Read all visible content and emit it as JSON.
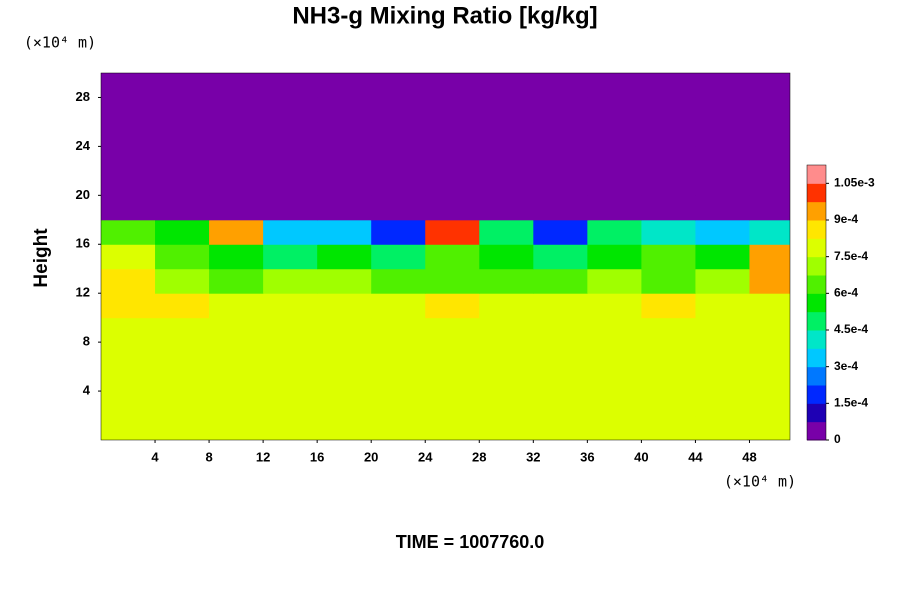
{
  "chart_data": {
    "type": "contour",
    "title": "NH3-g Mixing Ratio [kg/kg]",
    "y_label": "Height",
    "y_unit": "(×10⁴ m)",
    "x_unit": "(×10⁴ m)",
    "footer": "TIME = 1007760.0",
    "xlim": [
      0,
      51
    ],
    "xticks": [
      4,
      8,
      12,
      16,
      20,
      24,
      28,
      32,
      36,
      40,
      44,
      48
    ],
    "ylim": [
      0,
      30
    ],
    "yticks": [
      4,
      8,
      12,
      16,
      20,
      24,
      28
    ],
    "x": [
      2,
      6,
      10,
      14,
      18,
      22,
      26,
      30,
      34,
      38,
      42,
      46,
      50
    ],
    "y": [
      1,
      3,
      5,
      7,
      9,
      11,
      13,
      15,
      17,
      19,
      21,
      23,
      25,
      27,
      29
    ],
    "z": [
      [
        0.00078,
        0.00078,
        0.00078,
        0.00078,
        0.00078,
        0.00078,
        0.00078,
        0.00078,
        0.00078,
        0.00078,
        0.00078,
        0.00078,
        0.00078
      ],
      [
        0.00078,
        0.00078,
        0.00078,
        0.00078,
        0.00078,
        0.00078,
        0.00078,
        0.00078,
        0.00078,
        0.00078,
        0.00078,
        0.00078,
        0.00078
      ],
      [
        0.00078,
        0.00078,
        0.00078,
        0.00078,
        0.00078,
        0.00078,
        0.00078,
        0.00078,
        0.00078,
        0.00078,
        0.00078,
        0.00078,
        0.00078
      ],
      [
        0.00078,
        0.00078,
        0.00078,
        0.00078,
        0.00078,
        0.00078,
        0.00078,
        0.00078,
        0.00078,
        0.00078,
        0.00078,
        0.00078,
        0.00078
      ],
      [
        0.00078,
        0.00078,
        0.00078,
        0.00078,
        0.00078,
        0.00078,
        0.00078,
        0.00078,
        0.00078,
        0.00078,
        0.00078,
        0.00078,
        0.00078
      ],
      [
        0.00085,
        0.00085,
        0.00078,
        0.00078,
        0.00078,
        0.0008,
        0.00085,
        0.00078,
        0.00078,
        0.00078,
        0.00085,
        0.0008,
        0.00078
      ],
      [
        0.00085,
        0.0007,
        0.00065,
        0.0007,
        0.0007,
        0.00065,
        0.00065,
        0.00065,
        0.00065,
        0.0007,
        0.00065,
        0.0007,
        0.0009
      ],
      [
        0.0008,
        0.0006,
        0.00055,
        0.00045,
        0.00055,
        0.0005,
        0.0006,
        0.00055,
        0.0005,
        0.00055,
        0.0006,
        0.00055,
        0.00095
      ],
      [
        0.0006,
        0.00055,
        0.00095,
        0.00035,
        0.0003,
        0.0002,
        0.001,
        0.00045,
        0.0002,
        0.00045,
        0.0004,
        0.00035,
        0.0004
      ],
      [
        0,
        0,
        0,
        0,
        0,
        0,
        0,
        0,
        0,
        0,
        0,
        0,
        0
      ],
      [
        0,
        0,
        0,
        0,
        0,
        0,
        0,
        0,
        0,
        0,
        0,
        0,
        0
      ],
      [
        0,
        0,
        0,
        0,
        0,
        0,
        0,
        0,
        0,
        0,
        0,
        0,
        0
      ],
      [
        0,
        0,
        0,
        0,
        0,
        0,
        0,
        0,
        0,
        0,
        0,
        0,
        0
      ],
      [
        0,
        0,
        0,
        0,
        0,
        0,
        0,
        0,
        0,
        0,
        0,
        0,
        0
      ],
      [
        0,
        0,
        0,
        0,
        0,
        0,
        0,
        0,
        0,
        0,
        0,
        0,
        0
      ]
    ],
    "clim": [
      0,
      0.001125
    ],
    "cticks": [
      0,
      {
        "value": 0.00015,
        "label": "1.5e-4"
      },
      {
        "value": 0.0003,
        "label": "3e-4"
      },
      {
        "value": 0.00045,
        "label": "4.5e-4"
      },
      {
        "value": 0.0006,
        "label": "6e-4"
      },
      {
        "value": 0.00075,
        "label": "7.5e-4"
      },
      {
        "value": 0.0009,
        "label": "9e-4"
      },
      {
        "value": 0.00105,
        "label": "1.05e-3"
      }
    ],
    "colormap": [
      "#7800a8",
      "#1e00b4",
      "#0028ff",
      "#0078ff",
      "#00c8ff",
      "#00e6c8",
      "#00f064",
      "#00e600",
      "#50f000",
      "#a0ff00",
      "#dcff00",
      "#ffe600",
      "#ffa000",
      "#ff3200",
      "#ff8c8c"
    ]
  }
}
